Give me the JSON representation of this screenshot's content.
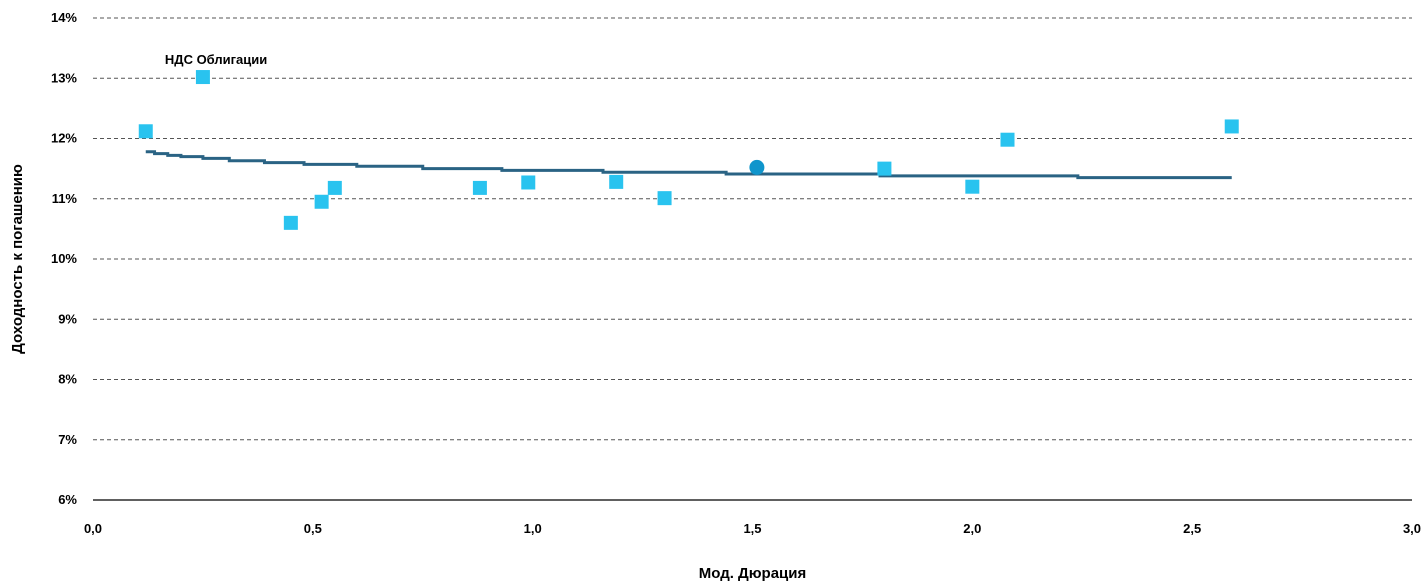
{
  "chart_data": {
    "type": "scatter",
    "title": "",
    "xlabel": "Мод. Дюрация",
    "ylabel": "Доходность к погашению",
    "xlim": [
      0.0,
      3.0
    ],
    "ylim": [
      6,
      14
    ],
    "x_ticks": [
      "0,0",
      "0,5",
      "1,0",
      "1,5",
      "2,0",
      "2,5",
      "3,0"
    ],
    "x_tick_values": [
      0.0,
      0.5,
      1.0,
      1.5,
      2.0,
      2.5,
      3.0
    ],
    "y_ticks": [
      "6%",
      "7%",
      "8%",
      "9%",
      "10%",
      "11%",
      "12%",
      "13%",
      "14%"
    ],
    "y_tick_values": [
      6,
      7,
      8,
      9,
      10,
      11,
      12,
      13,
      14
    ],
    "grid": "horizontal dashed",
    "annotations": [
      {
        "text": "НДС  Облигации",
        "x": 0.28,
        "y": 13.3
      }
    ],
    "series": [
      {
        "type": "scatter",
        "marker": "square",
        "color": "#29c3ef",
        "points": [
          [
            0.12,
            12.12
          ],
          [
            0.25,
            13.02
          ],
          [
            0.45,
            10.6
          ],
          [
            0.52,
            10.95
          ],
          [
            0.55,
            11.18
          ],
          [
            0.88,
            11.18
          ],
          [
            0.99,
            11.27
          ],
          [
            1.19,
            11.28
          ],
          [
            1.3,
            11.01
          ],
          [
            1.8,
            11.5
          ],
          [
            2.0,
            11.2
          ],
          [
            2.08,
            11.98
          ],
          [
            2.59,
            12.2
          ]
        ]
      },
      {
        "type": "scatter",
        "marker": "circle",
        "color": "#0f95cc",
        "points": [
          [
            1.51,
            11.52
          ]
        ]
      },
      {
        "type": "line",
        "step": true,
        "color": "#2a6384",
        "points": [
          [
            0.12,
            11.78
          ],
          [
            0.14,
            11.75
          ],
          [
            0.17,
            11.72
          ],
          [
            0.2,
            11.7
          ],
          [
            0.25,
            11.67
          ],
          [
            0.31,
            11.63
          ],
          [
            0.39,
            11.6
          ],
          [
            0.48,
            11.57
          ],
          [
            0.6,
            11.54
          ],
          [
            0.75,
            11.5
          ],
          [
            0.93,
            11.47
          ],
          [
            1.16,
            11.44
          ],
          [
            1.44,
            11.41
          ],
          [
            1.79,
            11.38
          ],
          [
            2.24,
            11.35
          ],
          [
            2.59,
            11.35
          ]
        ]
      }
    ]
  }
}
